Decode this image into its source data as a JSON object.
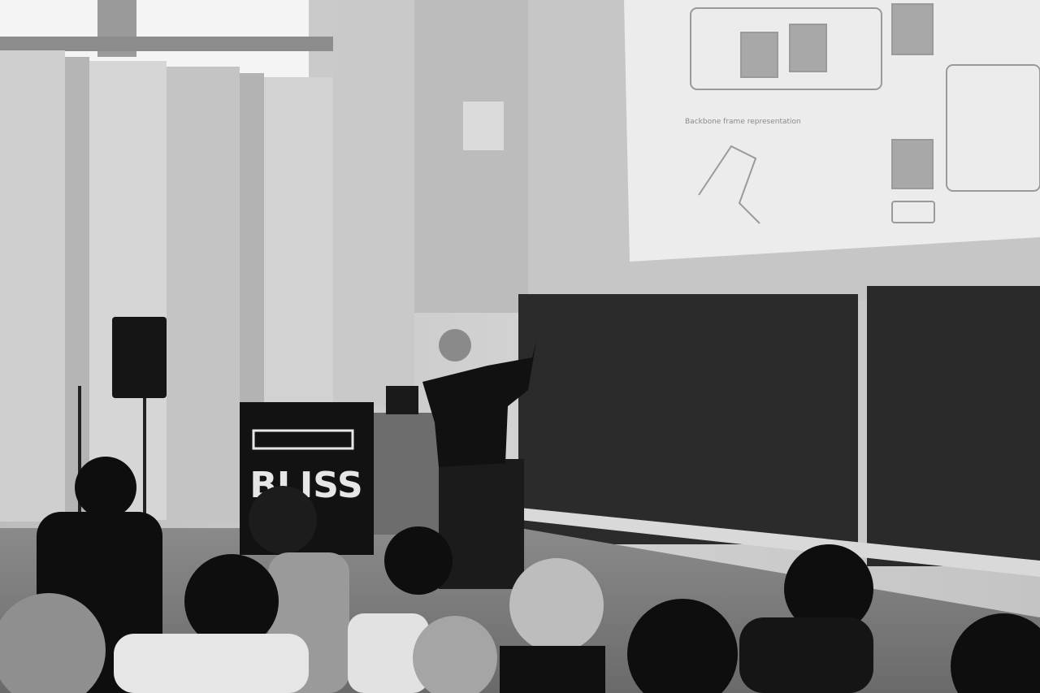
{
  "banner": {
    "text": "BLISS"
  },
  "slide": {
    "caption": "Backbone frame representation"
  }
}
